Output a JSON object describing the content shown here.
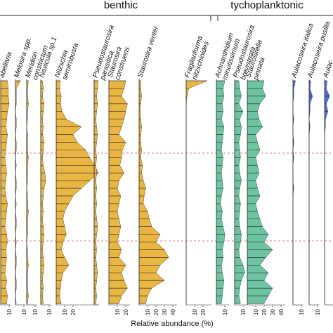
{
  "chart_data": {
    "type": "stratigraphic",
    "groups": [
      "benthic",
      "tychoplanktonic"
    ],
    "x_label": "Relative abundance (%)",
    "taxa": [
      {
        "name": [
          "abellaria"
        ],
        "color": "#e9b543",
        "xlim": [
          0,
          12
        ],
        "xticks": [
          10
        ],
        "values": [
          8,
          9,
          9,
          10,
          8,
          7,
          6,
          8,
          7,
          6,
          5,
          6,
          7,
          6,
          5,
          6,
          8,
          7,
          6,
          5,
          7,
          8,
          6,
          7,
          6,
          5,
          7,
          6,
          8,
          7
        ]
      },
      {
        "name": [
          "Melosira spp."
        ],
        "color": "#e9b543",
        "xlim": [
          0,
          12
        ],
        "xticks": [
          10
        ],
        "values": [
          6,
          1,
          1,
          1,
          0,
          1,
          1,
          0,
          1,
          1,
          0,
          1,
          0,
          1,
          1,
          0,
          1,
          0,
          1,
          1,
          0,
          1,
          0,
          1,
          1,
          0,
          1,
          1,
          0,
          1
        ]
      },
      {
        "name": [
          "Meridion",
          "constrictum"
        ],
        "color": "#e9b543",
        "xlim": [
          0,
          12
        ],
        "xticks": [
          10
        ],
        "values": [
          2,
          1,
          1,
          2,
          1,
          1,
          0,
          1,
          1,
          1,
          2,
          1,
          1,
          1,
          0,
          1,
          1,
          2,
          1,
          1,
          1,
          0,
          1,
          1,
          2,
          1,
          1,
          1,
          2,
          1
        ]
      },
      {
        "name": [
          "Navicula sp.1"
        ],
        "color": "#e9b543",
        "xlim": [
          0,
          12
        ],
        "xticks": [
          10
        ],
        "values": [
          2,
          3,
          2,
          4,
          3,
          2,
          3,
          2,
          4,
          3,
          2,
          3,
          5,
          6,
          4,
          3,
          2,
          3,
          2,
          3,
          4,
          3,
          2,
          3,
          4,
          3,
          2,
          3,
          2,
          3
        ]
      },
      {
        "name": [
          "Nitzschia",
          "semirobusta"
        ],
        "color": "#e9b543",
        "xlim": [
          0,
          50
        ],
        "xticks": [
          10,
          20
        ],
        "values": [
          5,
          4,
          6,
          5,
          7,
          12,
          30,
          20,
          25,
          35,
          40,
          45,
          50,
          40,
          30,
          20,
          15,
          10,
          8,
          10,
          12,
          8,
          6,
          10,
          15,
          8,
          6,
          5,
          4,
          6
        ]
      },
      {
        "name": [
          "Pseudostaurosira",
          "parasitica"
        ],
        "color": "#e9b543",
        "xlim": [
          0,
          6
        ],
        "xticks": [],
        "values": [
          5,
          4,
          3,
          4,
          3,
          2,
          3,
          4,
          3,
          2,
          3,
          2,
          3,
          2,
          3,
          2,
          3,
          2,
          3,
          4,
          3,
          2,
          3,
          2,
          3,
          4,
          3,
          2,
          3,
          2
        ]
      },
      {
        "name": [
          "Staurosira",
          "construens"
        ],
        "color": "#e9b543",
        "xlim": [
          0,
          25
        ],
        "xticks": [
          10,
          20
        ],
        "values": [
          20,
          18,
          15,
          22,
          20,
          18,
          15,
          12,
          20,
          16,
          15,
          13,
          18,
          12,
          10,
          14,
          12,
          10,
          12,
          14,
          12,
          10,
          15,
          12,
          20,
          15,
          18,
          22,
          15,
          12
        ]
      },
      {
        "name": [
          "Staurosira venter"
        ],
        "color": "#e9b543",
        "xlim": [
          0,
          45
        ],
        "xticks": [
          10,
          20,
          30,
          40
        ],
        "values": [
          2,
          2,
          3,
          2,
          1,
          2,
          3,
          2,
          2,
          3,
          2,
          4,
          3,
          5,
          8,
          6,
          5,
          10,
          12,
          15,
          25,
          20,
          30,
          35,
          25,
          20,
          30,
          15,
          10,
          8
        ]
      },
      {
        "name": [
          "Fragilariforma",
          "nitzschioides"
        ],
        "color": "#e9b543",
        "xlim": [
          0,
          30
        ],
        "xticks": [
          10,
          20
        ],
        "values": [
          25,
          3,
          1,
          0,
          0,
          0,
          0,
          0,
          0,
          0,
          0,
          0,
          0,
          0,
          0,
          0,
          0,
          0,
          0,
          0,
          0,
          0,
          0,
          0,
          0,
          0,
          0,
          0,
          0,
          0
        ]
      },
      {
        "name": [
          "Achnanthidium",
          "minutissimum"
        ],
        "color": "#6cc4a1",
        "xlim": [
          0,
          15
        ],
        "xticks": [
          10
        ],
        "values": [
          10,
          8,
          9,
          7,
          8,
          6,
          9,
          8,
          7,
          6,
          8,
          7,
          6,
          7,
          8,
          6,
          5,
          7,
          6,
          8,
          10,
          9,
          7,
          8,
          6,
          7,
          9,
          8,
          7,
          6
        ]
      },
      {
        "name": [
          "Pseudostaurosira",
          "brevistriata"
        ],
        "color": "#6cc4a1",
        "xlim": [
          0,
          15
        ],
        "xticks": [
          10
        ],
        "values": [
          5,
          6,
          8,
          5,
          10,
          6,
          8,
          7,
          5,
          6,
          7,
          5,
          6,
          8,
          6,
          5,
          7,
          6,
          5,
          6,
          8,
          7,
          5,
          6,
          10,
          12,
          8,
          6,
          5,
          7
        ]
      },
      {
        "name": [
          "Staurosirella",
          "pinnata"
        ],
        "color": "#6cc4a1",
        "xlim": [
          0,
          45
        ],
        "xticks": [
          10,
          20,
          30,
          40
        ],
        "values": [
          20,
          18,
          22,
          15,
          12,
          14,
          18,
          10,
          12,
          15,
          10,
          12,
          14,
          10,
          12,
          15,
          10,
          12,
          15,
          18,
          25,
          20,
          30,
          22,
          15,
          25,
          20,
          30,
          25,
          20
        ]
      },
      {
        "name": [
          "Aulacoseira italica"
        ],
        "color": "#4a6fd6",
        "xlim": [
          0,
          12
        ],
        "xticks": [
          10
        ],
        "values": [
          3,
          1,
          1,
          0,
          0,
          1,
          0,
          0,
          1,
          0,
          1,
          0,
          0,
          0,
          1,
          0,
          0,
          0,
          0,
          0,
          0,
          0,
          0,
          0,
          0,
          0,
          0,
          0,
          0,
          0
        ]
      },
      {
        "name": [
          "Aulacoseira pusilla"
        ],
        "color": "#4a6fd6",
        "xlim": [
          0,
          12
        ],
        "xticks": [
          10
        ],
        "values": [
          2,
          1,
          4,
          1,
          1,
          0,
          1,
          0,
          0,
          0,
          0,
          0,
          0,
          0,
          0,
          0,
          0,
          0,
          0,
          0,
          0,
          0,
          0,
          0,
          0,
          0,
          0,
          0,
          0,
          0
        ]
      },
      {
        "name": [
          "Aulac"
        ],
        "color": "#4a6fd6",
        "xlim": [
          0,
          12
        ],
        "xticks": [],
        "values": [
          3,
          2,
          6,
          2,
          4,
          1,
          1,
          0,
          0,
          0,
          0,
          0,
          0,
          0,
          0,
          0,
          0,
          0,
          0,
          0,
          0,
          0,
          0,
          0,
          0,
          0,
          0,
          0,
          0,
          0
        ]
      }
    ]
  }
}
